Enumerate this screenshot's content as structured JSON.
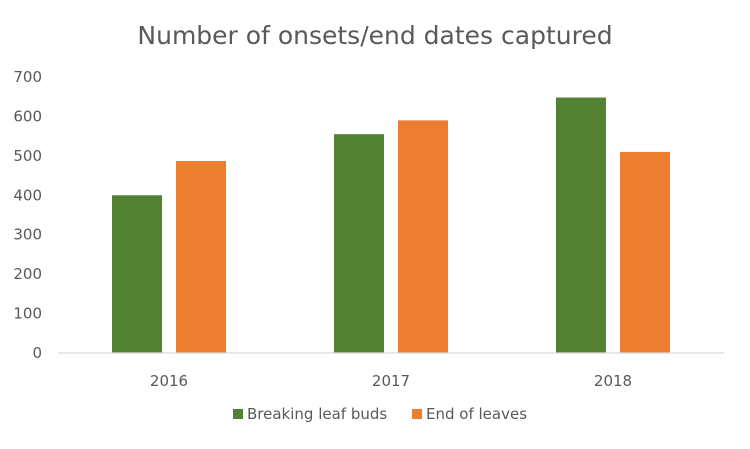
{
  "chart_data": {
    "type": "bar",
    "title": "Number of onsets/end dates captured",
    "categories": [
      "2016",
      "2017",
      "2018"
    ],
    "series": [
      {
        "name": "Breaking leaf buds",
        "values": [
          400,
          555,
          648
        ],
        "color": "#548235"
      },
      {
        "name": "End of leaves",
        "values": [
          487,
          590,
          510
        ],
        "color": "#ED7D31"
      }
    ],
    "y_ticks": [
      "0",
      "100",
      "200",
      "300",
      "400",
      "500",
      "600",
      "700"
    ],
    "ylim": [
      0,
      700
    ],
    "xlabel": "",
    "ylabel": "",
    "grid": false,
    "legend_position": "bottom",
    "axis_color": "#d9d9d9"
  }
}
